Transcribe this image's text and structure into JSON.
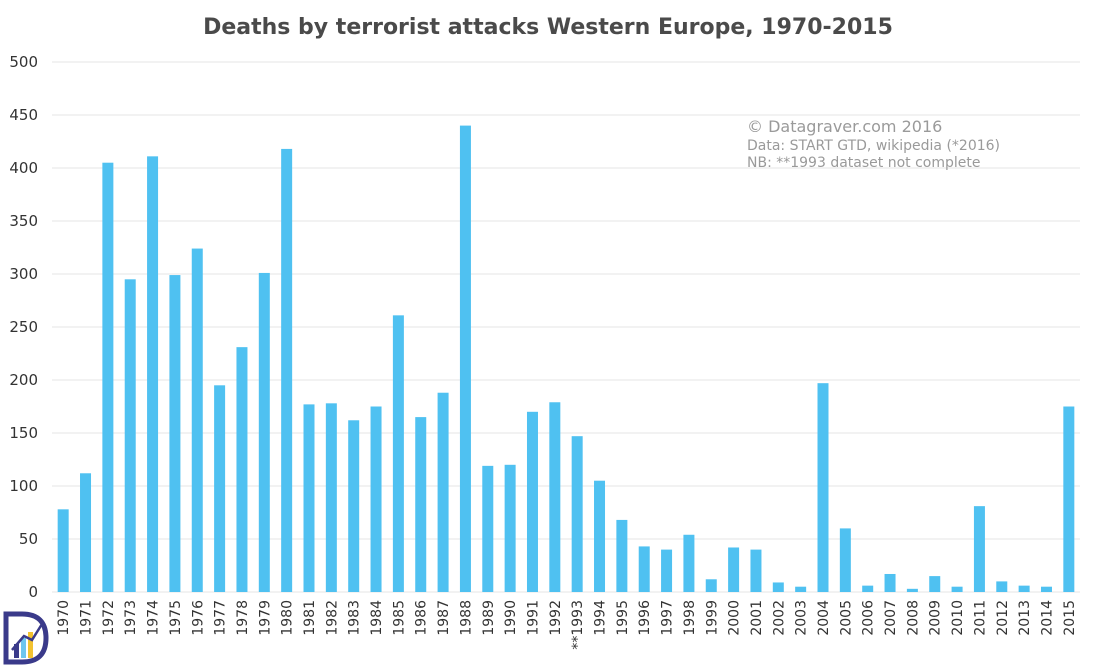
{
  "chart_data": {
    "type": "bar",
    "title": "Deaths by terrorist attacks Western Europe, 1970-2015",
    "xlabel": "",
    "ylabel": "",
    "ylim": [
      0,
      500
    ],
    "yticks": [
      "0",
      "50",
      "100",
      "150",
      "200",
      "250",
      "300",
      "350",
      "400",
      "450",
      "500"
    ],
    "grid": true,
    "bar_color": "#4fc1f1",
    "categories": [
      "1970",
      "1971",
      "1972",
      "1973",
      "1974",
      "1975",
      "1976",
      "1977",
      "1978",
      "1979",
      "1980",
      "1981",
      "1982",
      "1983",
      "1984",
      "1985",
      "1986",
      "1987",
      "1988",
      "1989",
      "1990",
      "1991",
      "1992",
      "**1993",
      "1994",
      "1995",
      "1996",
      "1997",
      "1998",
      "1999",
      "2000",
      "2001",
      "2002",
      "2003",
      "2004",
      "2005",
      "2006",
      "2007",
      "2008",
      "2009",
      "2010",
      "2011",
      "2012",
      "2013",
      "2014",
      "2015"
    ],
    "values": [
      78,
      112,
      405,
      295,
      411,
      299,
      324,
      195,
      231,
      301,
      418,
      177,
      178,
      162,
      175,
      261,
      165,
      188,
      440,
      119,
      120,
      170,
      179,
      147,
      105,
      68,
      43,
      40,
      54,
      12,
      42,
      40,
      9,
      5,
      197,
      60,
      6,
      17,
      3,
      15,
      5,
      81,
      10,
      6,
      5,
      175
    ],
    "annotations": {
      "credit": "© Datagraver.com 2016",
      "source": "Data: START GTD, wikipedia (*2016)",
      "note": "NB: **1993 dataset not complete"
    }
  },
  "logo": {
    "name": "Datagraver logo",
    "colors": [
      "#3a3a8a",
      "#6ec6ef",
      "#f2c230"
    ]
  }
}
